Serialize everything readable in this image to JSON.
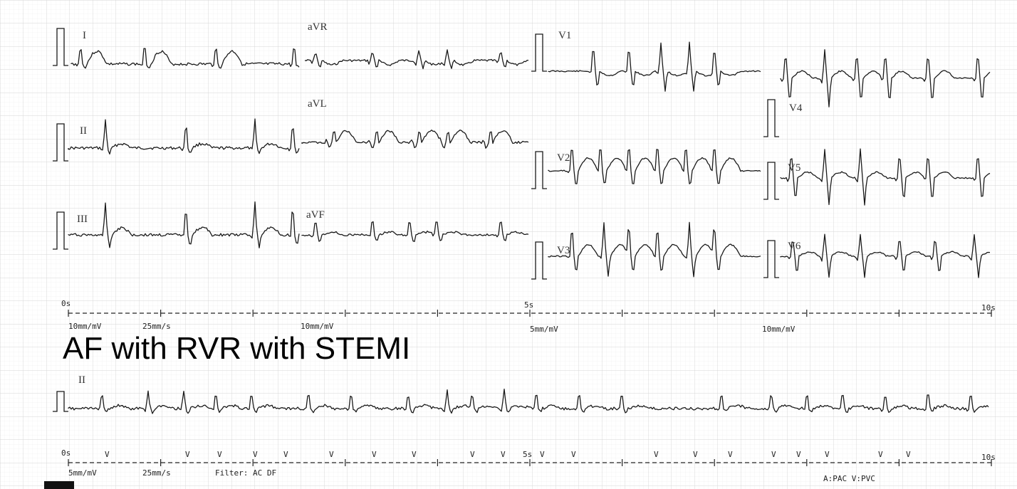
{
  "diagnosis": "AF with RVR with STEMI",
  "top_section": {
    "leads": [
      "I",
      "aVR",
      "V1",
      "V4",
      "II",
      "aVL",
      "V2",
      "V5",
      "III",
      "aVF",
      "V3",
      "V6"
    ],
    "time_start": "0s",
    "time_mid": "5s",
    "time_end": "10s",
    "scale_labels": [
      "10mm/mV",
      "25mm/s",
      "10mm/mV",
      "5mm/mV",
      "10mm/mV"
    ]
  },
  "bottom_section": {
    "lead": "II",
    "time_start": "0s",
    "time_mid": "5s",
    "time_end": "10s",
    "scale_labels": [
      "5mm/mV",
      "25mm/s",
      "Filter: AC DF"
    ],
    "legend": "A:PAC  V:PVC",
    "beat_marker": "V"
  },
  "colors": {
    "grid_fine": "#ececec",
    "grid_bold": "#d6d6d6",
    "trace": "#1a1a1a"
  }
}
